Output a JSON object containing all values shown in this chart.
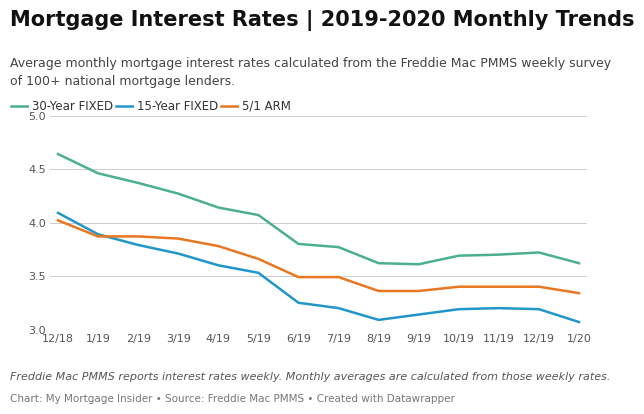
{
  "title": "Mortgage Interest Rates | 2019-2020 Monthly Trends",
  "subtitle": "Average monthly mortgage interest rates calculated from the Freddie Mac PMMS weekly survey\nof 100+ national mortgage lenders.",
  "footnote": "Freddie Mac PMMS reports interest rates weekly. Monthly averages are calculated from those weekly rates.",
  "source": "Chart: My Mortgage Insider • Source: Freddie Mac PMMS • Created with Datawrapper",
  "x_labels": [
    "12/18",
    "1/19",
    "2/19",
    "3/19",
    "4/19",
    "5/19",
    "6/19",
    "7/19",
    "8/19",
    "9/19",
    "10/19",
    "11/19",
    "12/19",
    "1/20"
  ],
  "series_30yr": [
    4.64,
    4.46,
    4.37,
    4.27,
    4.14,
    4.07,
    3.8,
    3.77,
    3.62,
    3.61,
    3.69,
    3.7,
    3.72,
    3.62
  ],
  "series_15yr": [
    4.09,
    3.89,
    3.79,
    3.71,
    3.6,
    3.53,
    3.25,
    3.2,
    3.09,
    3.14,
    3.19,
    3.2,
    3.19,
    3.07
  ],
  "series_arm": [
    4.02,
    3.87,
    3.87,
    3.85,
    3.78,
    3.66,
    3.49,
    3.49,
    3.36,
    3.36,
    3.4,
    3.4,
    3.4,
    3.34
  ],
  "color_30yr": "#4CAF8E",
  "color_15yr": "#2196C9",
  "color_arm": "#E87722",
  "ylim": [
    3.0,
    5.0
  ],
  "yticks": [
    3.0,
    3.5,
    4.0,
    4.5,
    5.0
  ],
  "background_color": "#ffffff",
  "plot_bg_color": "#ffffff",
  "title_fontsize": 15,
  "subtitle_fontsize": 9,
  "footnote_fontsize": 8,
  "source_fontsize": 7.5,
  "legend_fontsize": 8.5,
  "tick_fontsize": 8,
  "linewidth": 1.8,
  "legend_items": [
    {
      "color": "#4CAF8E",
      "label": "30-Year FIXED"
    },
    {
      "color": "#2196C9",
      "label": "15-Year FIXED"
    },
    {
      "color": "#E87722",
      "label": "5/1 ARM"
    }
  ]
}
